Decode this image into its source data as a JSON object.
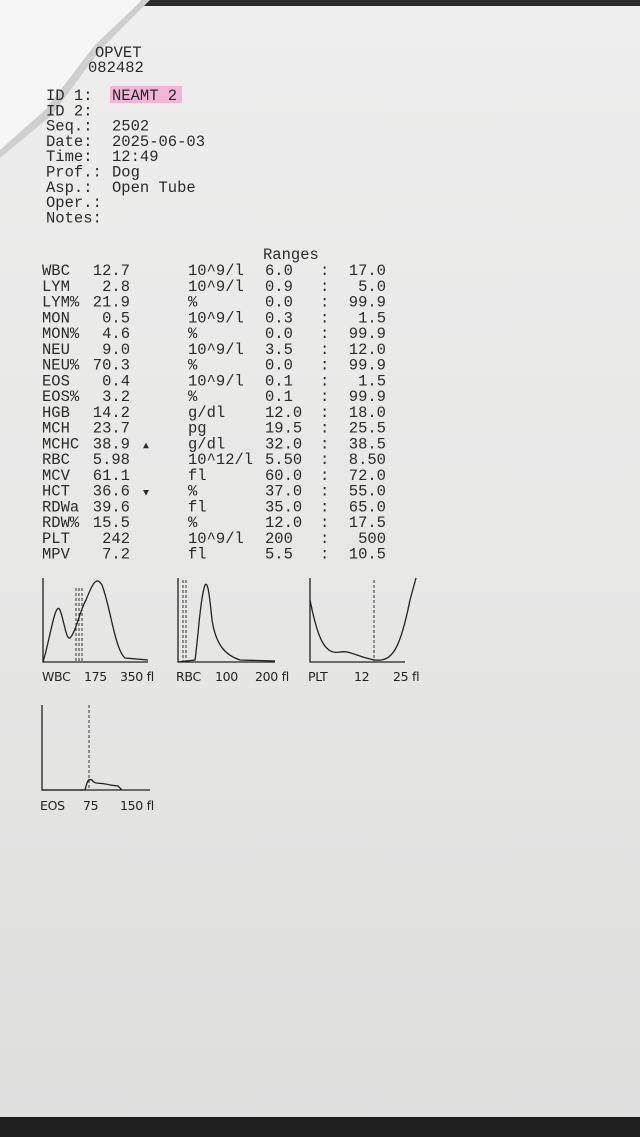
{
  "header": {
    "lines": [
      "OPVET",
      "082482"
    ]
  },
  "fields": [
    {
      "label": "ID 1:",
      "value": "NEAMT 2"
    },
    {
      "label": "ID 2:"
    },
    {
      "label": "Seq.:",
      "value": "2502"
    },
    {
      "label": "Date:",
      "value": "2025-06-03"
    },
    {
      "label": "Time:",
      "value": "12:49"
    },
    {
      "label": "Prof.:",
      "value": "Dog"
    },
    {
      "label": "Asp.:",
      "value": "Open Tube"
    },
    {
      "label": "Oper.:"
    },
    {
      "label": "Notes:"
    }
  ],
  "results": {
    "ranges_title": "Ranges",
    "rows": [
      {
        "name": "WBC",
        "value": "12.7",
        "unit": "10^9/l",
        "low": "6.0",
        "sep": ":",
        "high": "17.0"
      },
      {
        "name": "LYM",
        "value": "2.8",
        "unit": "10^9/l",
        "low": "0.9",
        "sep": ":",
        "high": "5.0"
      },
      {
        "name": "LYM%",
        "value": "21.9",
        "unit": "%",
        "low": "0.0",
        "sep": ":",
        "high": "99.9"
      },
      {
        "name": "MON",
        "value": "0.5",
        "unit": "10^9/l",
        "low": "0.3",
        "sep": ":",
        "high": "1.5"
      },
      {
        "name": "MON%",
        "value": "4.6",
        "unit": "%",
        "low": "0.0",
        "sep": ":",
        "high": "99.9"
      },
      {
        "name": "NEU",
        "value": "9.0",
        "unit": "10^9/l",
        "low": "3.5",
        "sep": ":",
        "high": "12.0"
      },
      {
        "name": "NEU%",
        "value": "70.3",
        "unit": "%",
        "low": "0.0",
        "sep": ":",
        "high": "99.9"
      },
      {
        "name": "EOS",
        "value": "0.4",
        "unit": "10^9/l",
        "low": "0.1",
        "sep": ":",
        "high": "1.5"
      },
      {
        "name": "EOS%",
        "value": "3.2",
        "unit": "%",
        "low": "0.1",
        "sep": ":",
        "high": "99.9"
      },
      {
        "name": "HGB",
        "value": "14.2",
        "unit": "g/dl",
        "low": "12.0",
        "sep": ":",
        "high": "18.0"
      },
      {
        "name": "MCH",
        "value": "23.7",
        "unit": "pg",
        "low": "19.5",
        "sep": ":",
        "high": "25.5"
      },
      {
        "name": "MCHC",
        "value": "38.9",
        "flag": "▲",
        "unit": "g/dl",
        "low": "32.0",
        "sep": ":",
        "high": "38.5"
      },
      {
        "name": "RBC",
        "value": "5.98",
        "unit": "10^12/l",
        "low": "5.50",
        "sep": ":",
        "high": "8.50"
      },
      {
        "name": "MCV",
        "value": "61.1",
        "unit": "fl",
        "low": "60.0",
        "sep": ":",
        "high": "72.0"
      },
      {
        "name": "HCT",
        "value": "36.6",
        "flag": "▼",
        "unit": "%",
        "low": "37.0",
        "sep": ":",
        "high": "55.0"
      },
      {
        "name": "RDWa",
        "value": "39.6",
        "unit": "fl",
        "low": "35.0",
        "sep": ":",
        "high": "65.0"
      },
      {
        "name": "RDW%",
        "value": "15.5",
        "unit": "%",
        "low": "12.0",
        "sep": ":",
        "high": "17.5"
      },
      {
        "name": "PLT",
        "value": "242",
        "unit": "10^9/l",
        "low": "200",
        "sep": ":",
        "high": "500"
      },
      {
        "name": "MPV",
        "value": "7.2",
        "unit": "fl",
        "low": "5.5",
        "sep": ":",
        "high": "10.5"
      }
    ]
  },
  "histograms": [
    {
      "name": "WBC",
      "ticks": [
        "175",
        "350 fl"
      ]
    },
    {
      "name": "RBC",
      "ticks": [
        "100",
        "200 fl"
      ]
    },
    {
      "name": "PLT",
      "ticks": [
        "12",
        "25 fl"
      ]
    },
    {
      "name": "EOS",
      "ticks": [
        "75",
        "150 fl"
      ]
    }
  ]
}
